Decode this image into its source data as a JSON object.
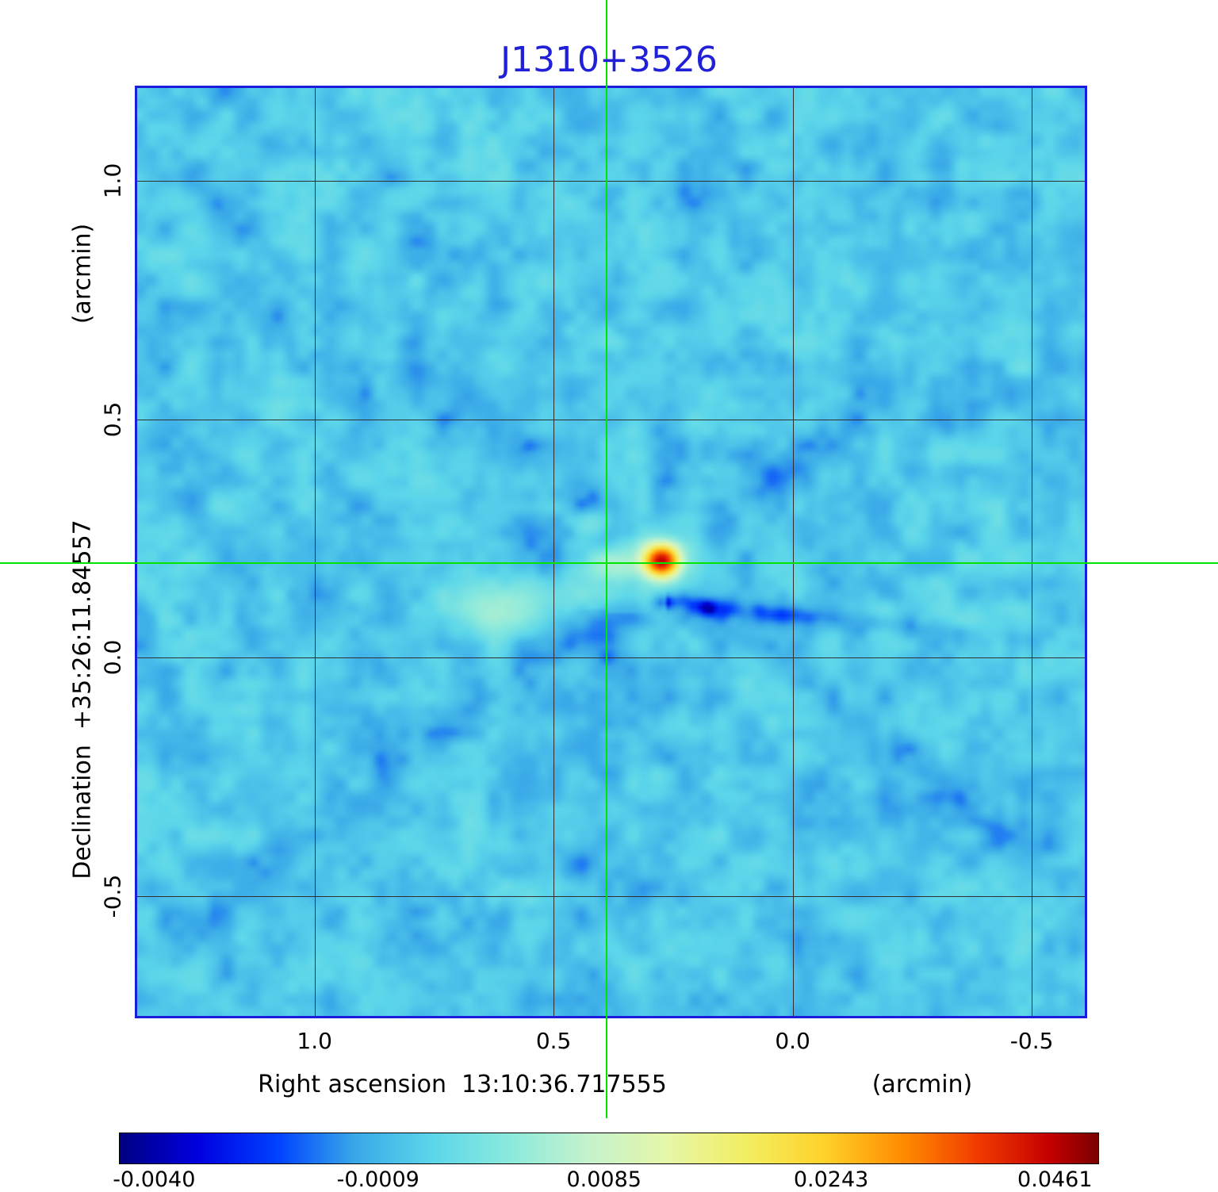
{
  "title": "J1310+3526",
  "colors": {
    "title": "#2020d8",
    "frame": "#1c1cdc",
    "grid": "#303030",
    "crosshair": "#00e400",
    "background": "#ffffff"
  },
  "axes": {
    "y": {
      "label": "Declination  +35:26:11.84557",
      "unit": "(arcmin)",
      "ticks": [
        "1.0",
        "0.5",
        "0.0",
        "-0.5"
      ]
    },
    "x": {
      "label": "Right ascension  13:10:36.717555",
      "unit": "(arcmin)",
      "ticks": [
        "1.0",
        "0.5",
        "0.0",
        "-0.5"
      ]
    }
  },
  "colorbar": {
    "ticks": [
      "-0.0040",
      "-0.0009",
      "0.0085",
      "0.0243",
      "0.0461"
    ],
    "scale": {
      "a": 0.0593,
      "b": -0.00425,
      "c": -0.00392
    },
    "stops": [
      [
        0.0,
        "#000082"
      ],
      [
        0.08,
        "#0000e0"
      ],
      [
        0.16,
        "#0040ff"
      ],
      [
        0.24,
        "#38a8e8"
      ],
      [
        0.32,
        "#5cd6ea"
      ],
      [
        0.4,
        "#8ceadc"
      ],
      [
        0.48,
        "#c6f2cc"
      ],
      [
        0.56,
        "#e6f6a8"
      ],
      [
        0.64,
        "#f2ee62"
      ],
      [
        0.72,
        "#ffd22a"
      ],
      [
        0.8,
        "#ff8c00"
      ],
      [
        0.88,
        "#f03800"
      ],
      [
        0.95,
        "#c40000"
      ],
      [
        1.0,
        "#7a0000"
      ]
    ]
  },
  "chart_data": {
    "type": "heatmap",
    "title": "J1310+3526",
    "xlabel": "Right ascension 13:10:36.717555 (arcmin)",
    "ylabel": "Declination +35:26:11.84557 (arcmin)",
    "x_ticks_arcmin": [
      1.0,
      0.5,
      0.0,
      -0.5
    ],
    "y_ticks_arcmin": [
      1.0,
      0.5,
      0.0,
      -0.5
    ],
    "x_range_arcmin": [
      1.371,
      -0.611
    ],
    "y_range_arcmin": [
      1.195,
      -0.752
    ],
    "colorbar_values": [
      -0.004,
      -0.0009,
      0.0085,
      0.0243,
      0.0461
    ],
    "background_value": 0.0,
    "crosshair_arcmin": {
      "x": 0.389,
      "y": 0.199
    },
    "features": [
      {
        "name": "peak-source",
        "x_arcmin": 0.279,
        "y_arcmin": 0.207,
        "sigma_x_arcmin": 0.023,
        "sigma_y_arcmin": 0.021,
        "amplitude": 0.042
      },
      {
        "name": "source-halo",
        "x_arcmin": 0.279,
        "y_arcmin": 0.213,
        "sigma_x_arcmin": 0.055,
        "sigma_y_arcmin": 0.048,
        "amplitude": 0.006
      },
      {
        "name": "negative-sidelobe",
        "x_arcmin": 0.277,
        "y_arcmin": 0.121,
        "sigma_x_arcmin": 0.016,
        "sigma_y_arcmin": 0.014,
        "amplitude": -0.0038
      },
      {
        "name": "secondary-blob",
        "x_arcmin": 0.634,
        "y_arcmin": 0.106,
        "sigma_x_arcmin": 0.065,
        "sigma_y_arcmin": 0.038,
        "amplitude": 0.005
      },
      {
        "name": "bridge",
        "x_arcmin": 0.45,
        "y_arcmin": 0.14,
        "sigma_x_arcmin": 0.1,
        "sigma_y_arcmin": 0.032,
        "amplitude": 0.0026
      },
      {
        "name": "west-patch",
        "x_arcmin": 0.381,
        "y_arcmin": 0.197,
        "sigma_x_arcmin": 0.035,
        "sigma_y_arcmin": 0.022,
        "amplitude": 0.005
      },
      {
        "name": "northwest-patch",
        "x_arcmin": 0.422,
        "y_arcmin": 0.29,
        "sigma_x_arcmin": 0.03,
        "sigma_y_arcmin": 0.02,
        "amplitude": 0.0032
      }
    ],
    "rays": [
      {
        "name": "east-dark-streak",
        "x_arcmin": 0.27,
        "y_arcmin": 0.121,
        "angle_deg": 6,
        "width_arcmin": 0.016,
        "length_arcmin": 0.5,
        "amplitude": -0.0026,
        "one_sided": true
      },
      {
        "name": "diagonal-nw-se",
        "x_arcmin": 0.279,
        "y_arcmin": 0.207,
        "angle_deg": 38,
        "width_arcmin": 0.03,
        "length_arcmin": 1.6,
        "amplitude": -0.0011,
        "one_sided": false
      },
      {
        "name": "diagonal-sw-ne",
        "x_arcmin": 0.279,
        "y_arcmin": 0.207,
        "angle_deg": -38,
        "width_arcmin": 0.03,
        "length_arcmin": 1.6,
        "amplitude": -0.0011,
        "one_sided": false
      },
      {
        "name": "south-column",
        "x_arcmin": 0.38,
        "y_arcmin": 0.1,
        "angle_deg": 95,
        "width_arcmin": 0.045,
        "length_arcmin": 0.9,
        "amplitude": -0.001,
        "one_sided": true
      },
      {
        "name": "north-column",
        "x_arcmin": 0.279,
        "y_arcmin": 0.25,
        "angle_deg": -85,
        "width_arcmin": 0.04,
        "length_arcmin": 0.55,
        "amplitude": -0.0009,
        "one_sided": true
      }
    ]
  }
}
